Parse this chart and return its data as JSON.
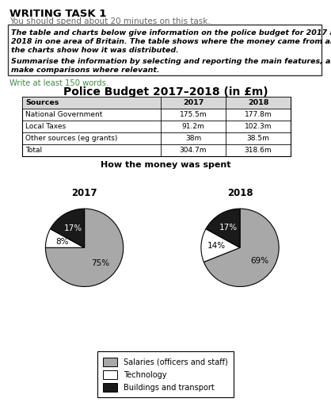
{
  "title_text": "WRITING TASK 1",
  "subtitle_text": "You should spend about 20 minutes on this task.",
  "box_line1": "The table and charts below give information on the police budget for 2017 and",
  "box_line2": "2018 in one area of Britain. The table shows where the money came from and",
  "box_line3": "the charts show how it was distributed.",
  "box_line4": "Summarise the information by selecting and reporting the main features, and",
  "box_line5": "make comparisons where relevant.",
  "write_text": "Write at least 150 words.",
  "chart_main_title": "Police Budget 2017–2018 (in £m)",
  "table_headers": [
    "Sources",
    "2017",
    "2018"
  ],
  "table_rows": [
    [
      "National Government",
      "175.5m",
      "177.8m"
    ],
    [
      "Local Taxes",
      "91.2m",
      "102.3m"
    ],
    [
      "Other sources (eg grants)",
      "38m",
      "38.5m"
    ],
    [
      "Total",
      "304.7m",
      "318.6m"
    ]
  ],
  "pie_title": "How the money was spent",
  "pie_2017_values": [
    75,
    8,
    17
  ],
  "pie_2018_values": [
    69,
    14,
    17
  ],
  "pie_labels_2017": [
    "75%",
    "8%",
    "17%"
  ],
  "pie_labels_2018": [
    "69%",
    "14%",
    "17%"
  ],
  "pie_colors": [
    "#a8a8a8",
    "#ffffff",
    "#1a1a1a"
  ],
  "legend_labels": [
    "Salaries (officers and staff)",
    "Technology",
    "Buildings and transport"
  ],
  "legend_colors": [
    "#a8a8a8",
    "#ffffff",
    "#1a1a1a"
  ],
  "bg_color": "#ffffff"
}
